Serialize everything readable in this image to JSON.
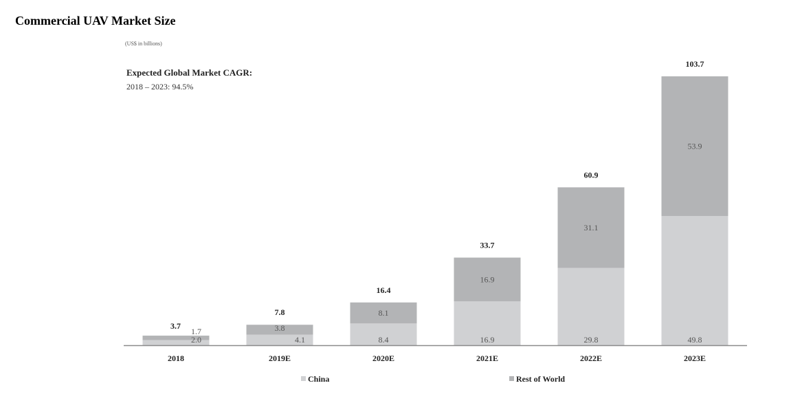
{
  "page": {
    "title": "Commercial UAV Market Size"
  },
  "chart_data": {
    "type": "bar",
    "stacked": true,
    "unit_label": "(US$ in billions)",
    "cagr": {
      "title": "Expected Global Market CAGR:",
      "value": "2018 – 2023: 94.5%"
    },
    "categories": [
      "2018",
      "2019E",
      "2020E",
      "2021E",
      "2022E",
      "2023E"
    ],
    "totals": [
      3.7,
      7.8,
      16.4,
      33.7,
      60.9,
      103.7
    ],
    "series": [
      {
        "name": "China",
        "values": [
          2.0,
          4.1,
          8.4,
          16.9,
          29.8,
          49.8
        ],
        "color": "#d0d1d3"
      },
      {
        "name": "Rest of World",
        "values": [
          1.7,
          3.8,
          8.1,
          16.9,
          31.1,
          53.9
        ],
        "color": "#b3b4b6"
      }
    ],
    "legend_position": "bottom",
    "grid": false,
    "ylim": [
      0,
      103.7
    ]
  }
}
